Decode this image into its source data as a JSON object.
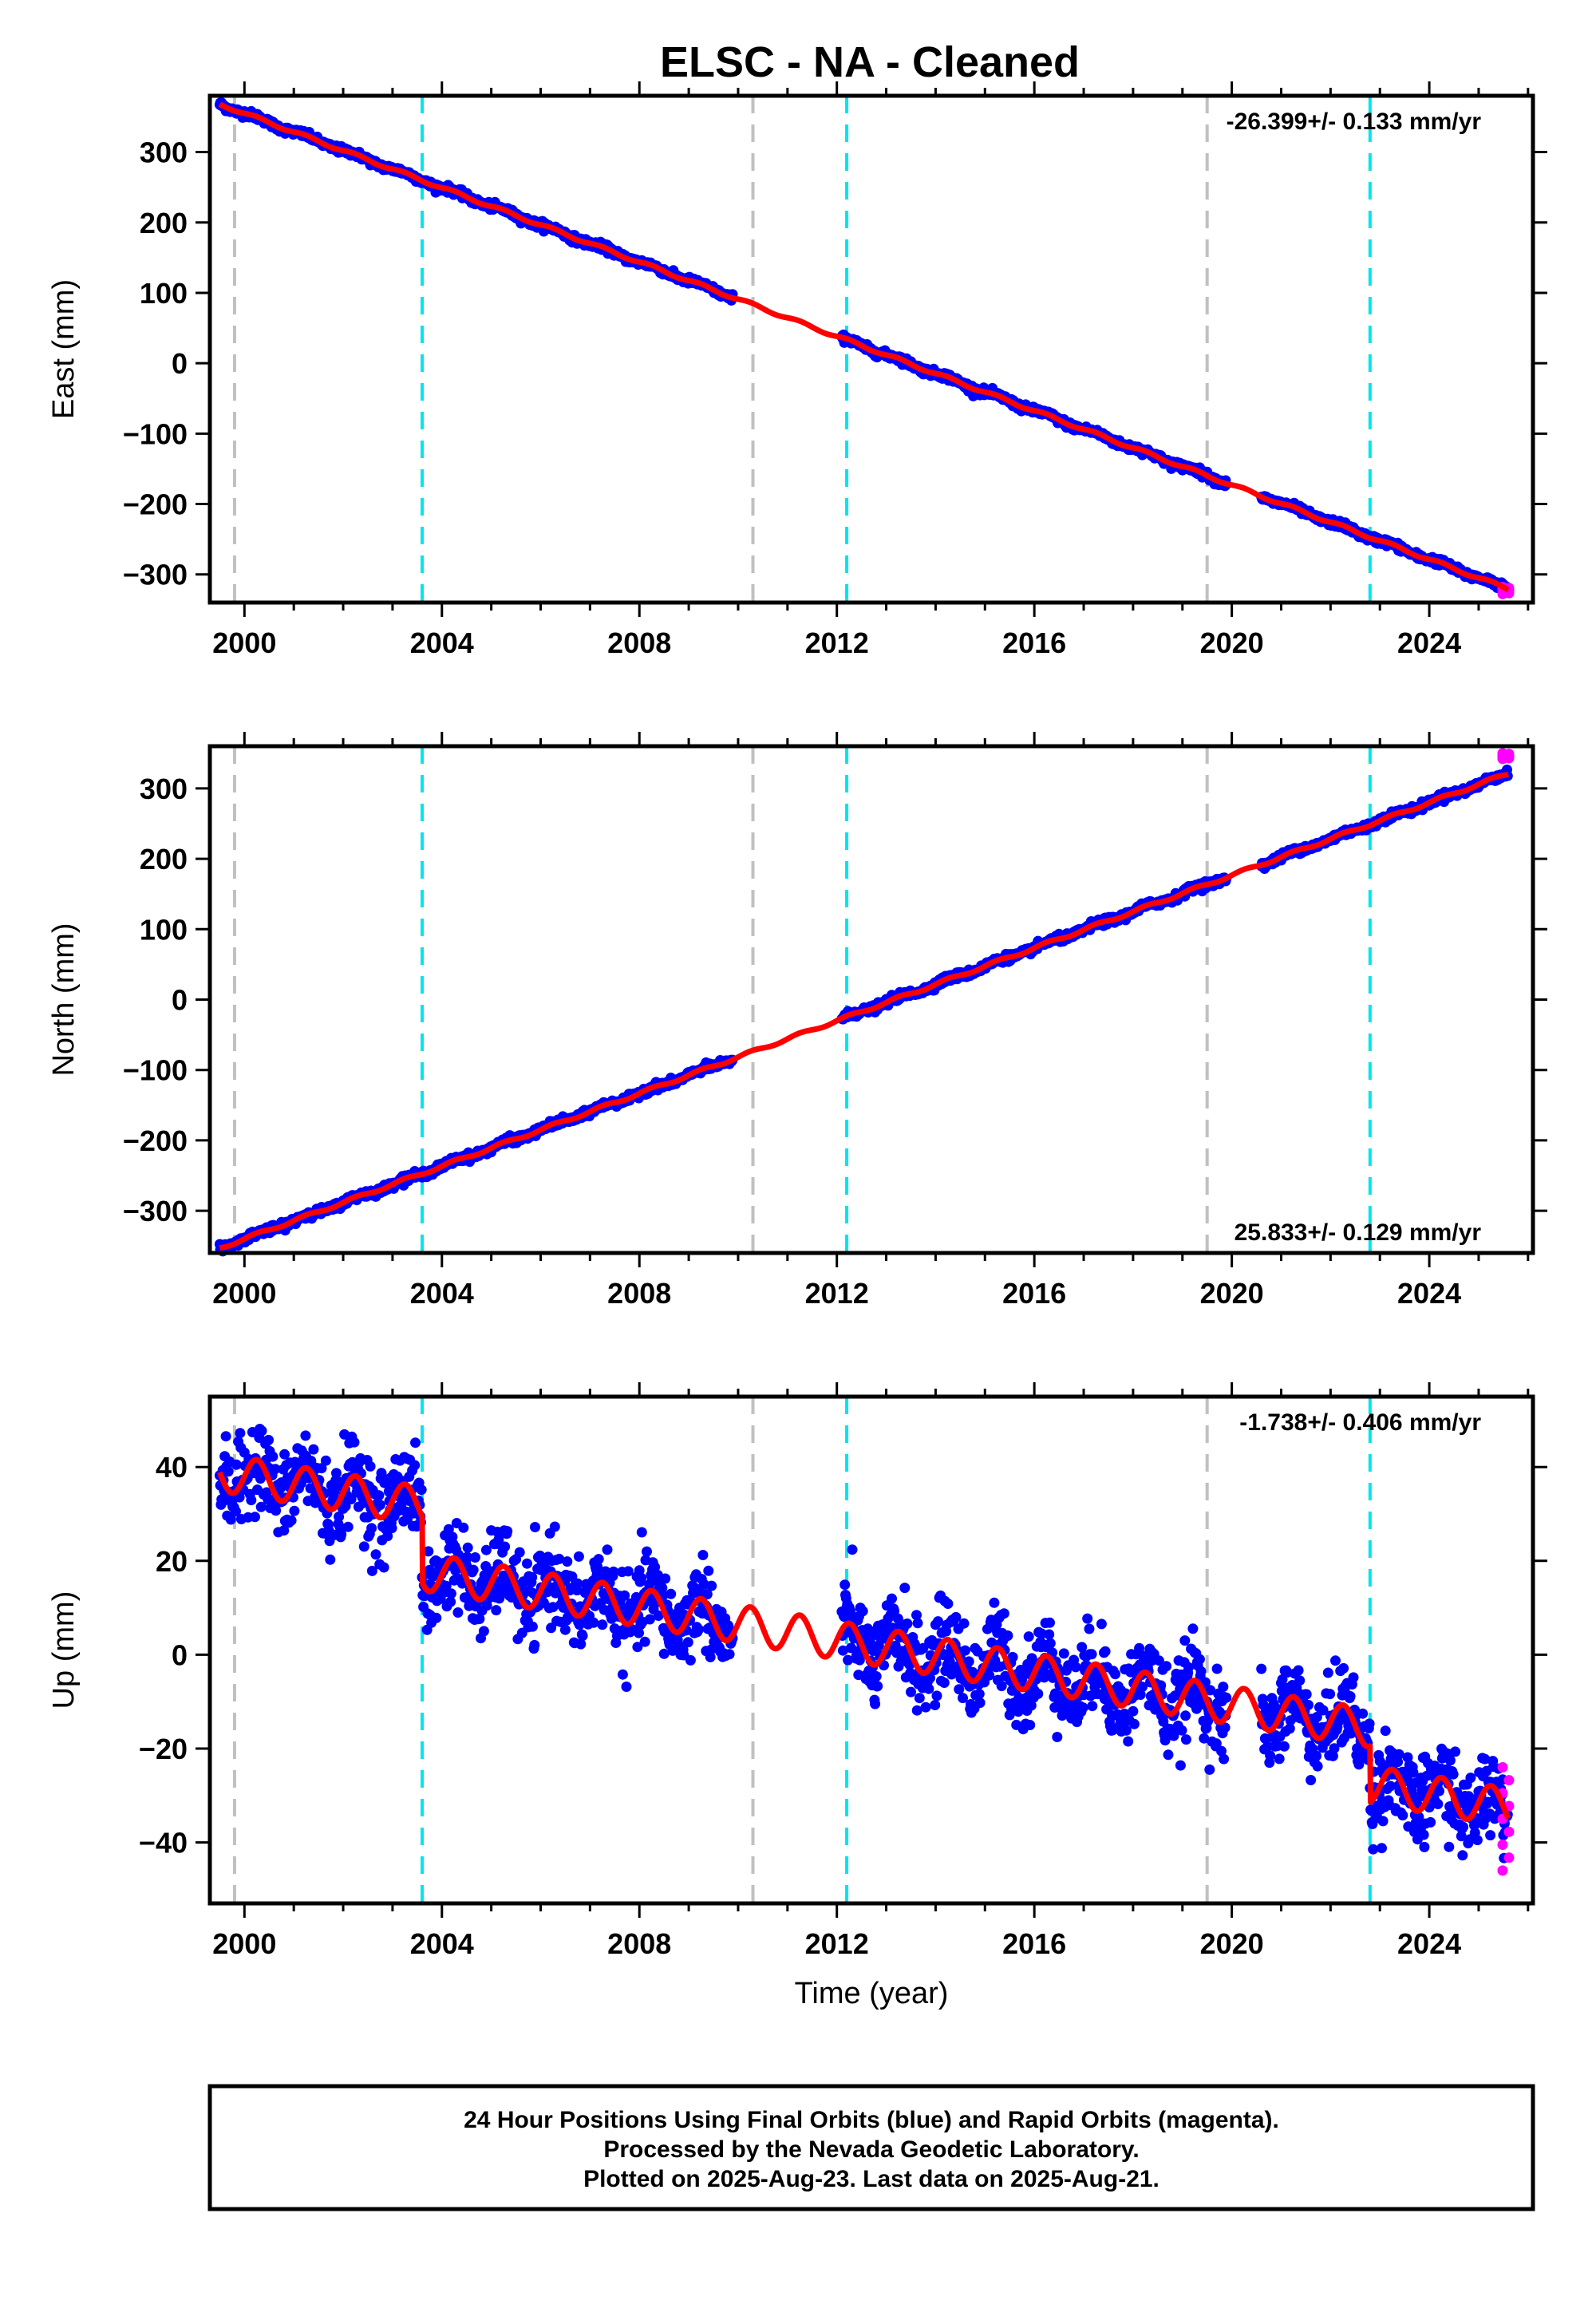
{
  "title": "ELSC  - NA - Cleaned",
  "colors": {
    "final_orbits": "#0000ff",
    "rapid_orbits": "#ff00ff",
    "model": "#ff0000",
    "equipment_change": "#00e5ee",
    "other_event": "#c0c0c0"
  },
  "footer": {
    "line1": "24 Hour Positions Using Final Orbits (blue) and Rapid Orbits (magenta).",
    "line2": "Processed by the Nevada Geodetic Laboratory.",
    "line3": "Plotted on 2025-Aug-23. Last data on 2025-Aug-21."
  },
  "chart_data": [
    {
      "type": "scatter",
      "component": "east",
      "ylabel": "East (mm)",
      "xlabel": "",
      "rate_text": "-26.399+/- 0.133 mm/yr",
      "rate_position": "top-right",
      "xlim": [
        1999.3,
        2026.1
      ],
      "ylim": [
        -340,
        380
      ],
      "x_ticks": [
        2000,
        2004,
        2008,
        2012,
        2016,
        2020,
        2024
      ],
      "x_tick_labels": [
        "2000",
        "2004",
        "2008",
        "2012",
        "2016",
        "2020",
        "2024"
      ],
      "y_ticks": [
        -300,
        -200,
        -100,
        0,
        100,
        200,
        300
      ],
      "y_tick_labels": [
        "−300",
        "−200",
        "−100",
        "0",
        "100",
        "200",
        "300"
      ],
      "gray_events": [
        1999.8,
        2010.3,
        2019.5
      ],
      "cyan_events": [
        2003.6,
        2012.2,
        2022.8
      ],
      "data_start": 1999.5,
      "data_end": 2025.6,
      "gaps": [
        [
          2009.9,
          2012.1
        ],
        [
          2019.9,
          2020.6
        ]
      ],
      "model": {
        "x0": 2000,
        "y0": 355,
        "rate": -26.4,
        "annual_amp": 2,
        "offsets": []
      },
      "noise_sd": 2.5,
      "rapid_tail": {
        "x": 2025.55,
        "ymin": -328,
        "ymax": -318
      }
    },
    {
      "type": "scatter",
      "component": "north",
      "ylabel": "North (mm)",
      "xlabel": "",
      "rate_text": "25.833+/- 0.129 mm/yr",
      "rate_position": "bottom-right",
      "xlim": [
        1999.3,
        2026.1
      ],
      "ylim": [
        -360,
        360
      ],
      "x_ticks": [
        2000,
        2004,
        2008,
        2012,
        2016,
        2020,
        2024
      ],
      "x_tick_labels": [
        "2000",
        "2004",
        "2008",
        "2012",
        "2016",
        "2020",
        "2024"
      ],
      "y_ticks": [
        -300,
        -200,
        -100,
        0,
        100,
        200,
        300
      ],
      "y_tick_labels": [
        "−300",
        "−200",
        "−100",
        "0",
        "100",
        "200",
        "300"
      ],
      "gray_events": [
        1999.8,
        2010.3,
        2019.5
      ],
      "cyan_events": [
        2003.6,
        2012.2,
        2022.8
      ],
      "data_start": 1999.5,
      "data_end": 2025.6,
      "gaps": [
        [
          2009.9,
          2012.1
        ],
        [
          2019.9,
          2020.6
        ]
      ],
      "model": {
        "x0": 2000,
        "y0": -340,
        "rate": 25.83,
        "annual_amp": 2,
        "offsets": []
      },
      "noise_sd": 2.5,
      "rapid_tail": {
        "x": 2025.55,
        "ymin": 342,
        "ymax": 350
      }
    },
    {
      "type": "scatter",
      "component": "up",
      "ylabel": "Up (mm)",
      "xlabel": "Time (year)",
      "rate_text": "-1.738+/- 0.406 mm/yr",
      "rate_position": "top-right",
      "xlim": [
        1999.3,
        2026.1
      ],
      "ylim": [
        -53,
        55
      ],
      "x_ticks": [
        2000,
        2004,
        2008,
        2012,
        2016,
        2020,
        2024
      ],
      "x_tick_labels": [
        "2000",
        "2004",
        "2008",
        "2012",
        "2016",
        "2020",
        "2024"
      ],
      "y_ticks": [
        -40,
        -20,
        0,
        20,
        40
      ],
      "y_tick_labels": [
        "−40",
        "−20",
        "0",
        "20",
        "40"
      ],
      "gray_events": [
        1999.8,
        2010.3,
        2019.5
      ],
      "cyan_events": [
        2003.6,
        2012.2,
        2022.8
      ],
      "data_start": 1999.5,
      "data_end": 2025.6,
      "gaps": [
        [
          2009.9,
          2012.1
        ],
        [
          2019.9,
          2020.6
        ]
      ],
      "model": {
        "x0": 2000,
        "y0": 38,
        "rate": -1.74,
        "annual_amp": 4,
        "offsets": [
          [
            2003.6,
            -14
          ],
          [
            2022.8,
            -12
          ]
        ]
      },
      "noise_sd": 4.5,
      "rapid_tail": {
        "x": 2025.55,
        "ymin": -46,
        "ymax": -24
      }
    }
  ]
}
